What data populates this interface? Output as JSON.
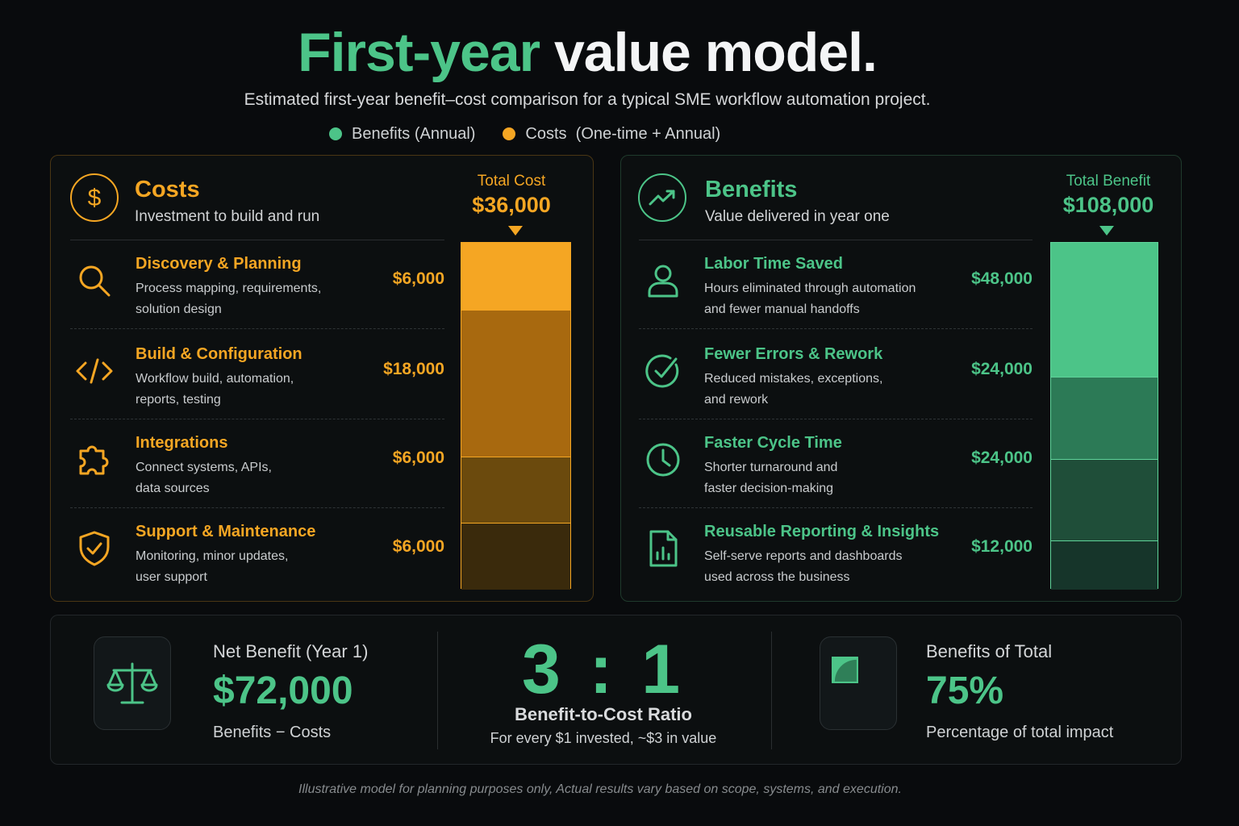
{
  "title": {
    "highlight": "First-year",
    "rest": "value model."
  },
  "subtitle": "Estimated first-year benefit–cost comparison for a typical SME workflow automation project.",
  "legend": [
    {
      "label": "Benefits (Annual)",
      "color": "#4cc488"
    },
    {
      "label": "Costs  (One-time + Annual)",
      "color": "#f5a623"
    }
  ],
  "costs": {
    "title": "Costs",
    "subtitle": "Investment to build and run",
    "total_label": "Total Cost",
    "total_value": "$36,000",
    "color": "#f5a623",
    "items": [
      {
        "name": "Discovery & Planning",
        "desc1": "Process mapping, requirements,",
        "desc2": "solution design",
        "value_label": "$6,000",
        "icon": "search-icon"
      },
      {
        "name": "Build & Configuration",
        "desc1": "Workflow build, automation,",
        "desc2": "reports, testing",
        "value_label": "$18,000",
        "icon": "code-icon"
      },
      {
        "name": "Integrations",
        "desc1": "Connect systems, APIs,",
        "desc2": "data sources",
        "value_label": "$6,000",
        "icon": "puzzle-icon"
      },
      {
        "name": "Support & Maintenance",
        "desc1": "Monitoring, minor updates,",
        "desc2": "user support",
        "value_label": "$6,000",
        "icon": "shield-check-icon"
      }
    ]
  },
  "benefits": {
    "title": "Benefits",
    "subtitle": "Value delivered in year one",
    "total_label": "Total Benefit",
    "total_value": "$108,000",
    "color": "#4cc488",
    "items": [
      {
        "name": "Labor Time Saved",
        "desc1": "Hours eliminated through automation",
        "desc2": "and fewer manual handoffs",
        "value_label": "$48,000",
        "icon": "user-icon"
      },
      {
        "name": "Fewer Errors & Rework",
        "desc1": "Reduced mistakes, exceptions,",
        "desc2": "and rework",
        "value_label": "$24,000",
        "icon": "check-circle-icon"
      },
      {
        "name": "Faster Cycle Time",
        "desc1": "Shorter turnaround and",
        "desc2": "faster decision-making",
        "value_label": "$24,000",
        "icon": "clock-icon"
      },
      {
        "name": "Reusable Reporting & Insights",
        "desc1": "Self-serve reports and dashboards",
        "desc2": "used across the business",
        "value_label": "$12,000",
        "icon": "report-icon"
      }
    ]
  },
  "chart_data": [
    {
      "type": "bar",
      "stacked": true,
      "categories": [
        "Discovery & Planning",
        "Build & Configuration",
        "Integrations",
        "Support & Maintenance"
      ],
      "values": [
        6000,
        18000,
        6000,
        6000
      ],
      "total": 36000,
      "colors": [
        "#f5a623",
        "#a8690f",
        "#6b4a0d",
        "#3a2a0c"
      ]
    },
    {
      "type": "bar",
      "stacked": true,
      "categories": [
        "Labor Time Saved",
        "Fewer Errors & Rework",
        "Faster Cycle Time",
        "Reusable Reporting & Insights"
      ],
      "values": [
        48000,
        24000,
        24000,
        12000
      ],
      "total": 108000,
      "colors": [
        "#4cc488",
        "#2c7a56",
        "#1f4e39",
        "#16352a"
      ]
    }
  ],
  "summary": {
    "net_label": "Net Benefit (Year 1)",
    "net_value": "$72,000",
    "net_note": "Benefits − Costs",
    "ratio": "3 : 1",
    "ratio_label": "Benefit-to-Cost Ratio",
    "ratio_note": "For every $1 invested, ~$3 in value",
    "share_label": "Benefits of Total",
    "share_value": "75%",
    "share_fraction": 0.75,
    "share_note": "Percentage of total impact"
  },
  "footnote": "Illustrative model for planning purposes only, Actual results vary based on scope, systems, and execution."
}
